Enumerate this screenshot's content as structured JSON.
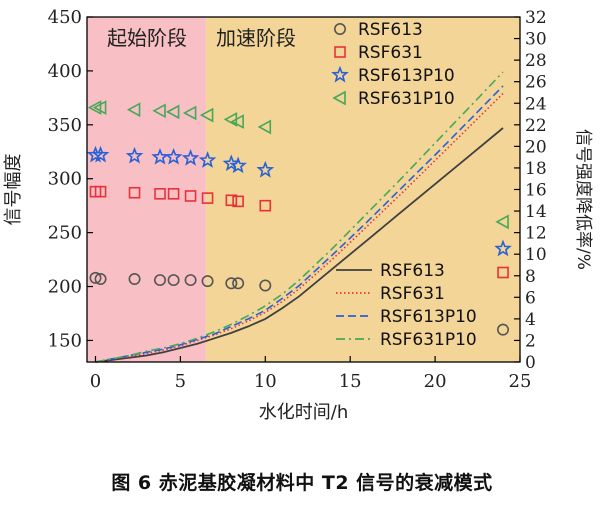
{
  "chart_data": {
    "type": "scatter",
    "caption": "图 6 赤泥基胶凝材料中 T2 信号的衰减模式",
    "xlabel": "水化时间/h",
    "ylabel_left": "信号幅度",
    "ylabel_right": "信号强度降低率/%",
    "xlim": [
      -0.5,
      25
    ],
    "ylim_left": [
      130,
      450
    ],
    "ylim_right": [
      0,
      32
    ],
    "xticks": [
      0,
      5,
      10,
      15,
      20,
      25
    ],
    "yticks_left": [
      150,
      200,
      250,
      300,
      350,
      400,
      450
    ],
    "yticks_right": [
      0,
      2,
      4,
      6,
      8,
      10,
      12,
      14,
      16,
      18,
      20,
      22,
      24,
      26,
      28,
      30,
      32
    ],
    "stages": [
      {
        "label": "起始阶段",
        "x": [
          -0.5,
          6.5
        ],
        "color": "#f8c0c4"
      },
      {
        "label": "加速阶段",
        "x": [
          6.5,
          25
        ],
        "color": "#f2d597"
      }
    ],
    "series_left": [
      {
        "name": "RSF613",
        "marker": "circle",
        "color": "#555555",
        "x": [
          0,
          0.3,
          2.3,
          3.8,
          4.6,
          5.6,
          6.6,
          8,
          8.4,
          10,
          24
        ],
        "y": [
          208,
          207,
          207,
          206,
          206,
          206,
          205,
          203,
          203,
          201,
          160
        ]
      },
      {
        "name": "RSF631",
        "marker": "square",
        "color": "#e8313a",
        "x": [
          0,
          0.3,
          2.3,
          3.8,
          4.6,
          5.6,
          6.6,
          8,
          8.4,
          10,
          24
        ],
        "y": [
          288,
          288,
          287,
          286,
          286,
          284,
          282,
          280,
          279,
          275,
          213
        ]
      },
      {
        "name": "RSF613P10",
        "marker": "star",
        "color": "#2860d8",
        "x": [
          0,
          0.3,
          2.3,
          3.8,
          4.6,
          5.6,
          6.6,
          8,
          8.4,
          10,
          24
        ],
        "y": [
          322,
          322,
          321,
          320,
          320,
          319,
          317,
          314,
          312,
          308,
          235
        ]
      },
      {
        "name": "RSF631P10",
        "marker": "triangle",
        "color": "#46a858",
        "x": [
          0,
          0.3,
          2.3,
          3.8,
          4.6,
          5.6,
          6.6,
          8,
          8.4,
          10,
          24
        ],
        "y": [
          366,
          366,
          364,
          363,
          362,
          361,
          359,
          355,
          353,
          348,
          260
        ]
      }
    ],
    "series_right": [
      {
        "name": "RSF613",
        "style": "solid",
        "color": "#404040",
        "x": [
          0,
          1,
          2,
          3,
          4,
          5,
          6,
          7,
          8,
          9,
          10,
          11,
          12,
          14,
          16,
          18,
          20,
          22,
          24
        ],
        "y": [
          0,
          0.2,
          0.4,
          0.6,
          0.9,
          1.3,
          1.7,
          2.2,
          2.7,
          3.3,
          4.0,
          5.0,
          6.1,
          8.7,
          11.3,
          13.9,
          16.5,
          19.1,
          21.7
        ]
      },
      {
        "name": "RSF631",
        "style": "dotted",
        "color": "#e8313a",
        "x": [
          0,
          1,
          2,
          3,
          4,
          5,
          6,
          7,
          8,
          9,
          10,
          11,
          12,
          14,
          16,
          18,
          20,
          22,
          24
        ],
        "y": [
          0,
          0.3,
          0.5,
          0.8,
          1.1,
          1.5,
          2.0,
          2.5,
          3.1,
          3.8,
          4.6,
          5.6,
          6.8,
          9.6,
          12.6,
          15.6,
          18.7,
          21.8,
          24.9
        ]
      },
      {
        "name": "RSF613P10",
        "style": "dashed",
        "color": "#2860d8",
        "x": [
          0,
          1,
          2,
          3,
          4,
          5,
          6,
          7,
          8,
          9,
          10,
          11,
          12,
          14,
          16,
          18,
          20,
          22,
          24
        ],
        "y": [
          0,
          0.3,
          0.6,
          0.9,
          1.2,
          1.6,
          2.1,
          2.6,
          3.3,
          4.0,
          4.8,
          5.9,
          7.1,
          10.0,
          13.0,
          16.1,
          19.2,
          22.4,
          25.6
        ]
      },
      {
        "name": "RSF631P10",
        "style": "dashdot",
        "color": "#46a858",
        "x": [
          0,
          1,
          2,
          3,
          4,
          5,
          6,
          7,
          8,
          9,
          10,
          11,
          12,
          14,
          16,
          18,
          20,
          22,
          24
        ],
        "y": [
          0,
          0.3,
          0.6,
          1.0,
          1.3,
          1.7,
          2.2,
          2.8,
          3.5,
          4.3,
          5.2,
          6.3,
          7.6,
          10.6,
          13.8,
          17.0,
          20.3,
          23.6,
          26.9
        ]
      }
    ],
    "legend_markers_position": "top-right",
    "legend_lines_position": "bottom-right"
  }
}
